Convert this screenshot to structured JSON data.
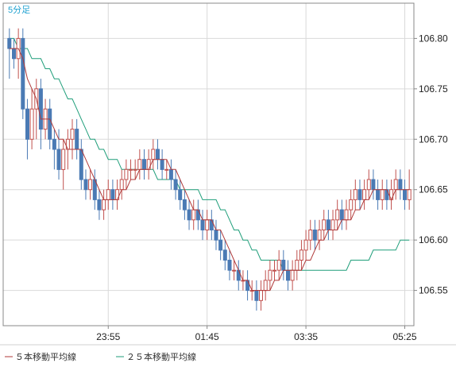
{
  "chart_data": {
    "type": "candlestick",
    "timeframe_label": "5分足",
    "ylim": [
      106.515,
      106.835
    ],
    "y_ticks": [
      "106.80",
      "106.75",
      "106.70",
      "106.65",
      "106.60",
      "106.55"
    ],
    "x_ticks": [
      {
        "label": "23:55",
        "index": 22
      },
      {
        "label": "01:45",
        "index": 44
      },
      {
        "label": "03:35",
        "index": 66
      },
      {
        "label": "05:25",
        "index": 88
      }
    ],
    "grid": true,
    "legend_position": "bottom-left",
    "colors": {
      "up": "#c0504d",
      "down": "#4a7ab4",
      "ma5": "#b03a3a",
      "ma25": "#1f9e7a",
      "grid": "#d9d9d9",
      "axis": "#888888"
    },
    "legend": [
      {
        "label": "５本移動平均線",
        "color": "#b03a3a"
      },
      {
        "label": "２５本移動平均線",
        "color": "#1f9e7a"
      }
    ],
    "candles": [
      [
        106.8,
        106.81,
        106.76,
        106.79
      ],
      [
        106.79,
        106.8,
        106.77,
        106.78
      ],
      [
        106.78,
        106.81,
        106.76,
        106.8
      ],
      [
        106.8,
        106.81,
        106.72,
        106.73
      ],
      [
        106.73,
        106.74,
        106.68,
        106.7
      ],
      [
        106.7,
        106.75,
        106.69,
        106.73
      ],
      [
        106.73,
        106.76,
        106.7,
        106.75
      ],
      [
        106.75,
        106.76,
        106.69,
        106.71
      ],
      [
        106.71,
        106.74,
        106.7,
        106.73
      ],
      [
        106.73,
        106.74,
        106.69,
        106.7
      ],
      [
        106.7,
        106.71,
        106.67,
        106.69
      ],
      [
        106.69,
        106.71,
        106.66,
        106.67
      ],
      [
        106.67,
        106.7,
        106.65,
        106.69
      ],
      [
        106.69,
        106.71,
        106.67,
        106.7
      ],
      [
        106.7,
        106.72,
        106.68,
        106.71
      ],
      [
        106.71,
        106.72,
        106.68,
        106.69
      ],
      [
        106.69,
        106.7,
        106.65,
        106.66
      ],
      [
        106.66,
        106.67,
        106.64,
        106.65
      ],
      [
        106.65,
        106.67,
        106.64,
        106.66
      ],
      [
        106.66,
        106.67,
        106.63,
        106.64
      ],
      [
        106.64,
        106.65,
        106.62,
        106.63
      ],
      [
        106.63,
        106.65,
        106.62,
        106.64
      ],
      [
        106.64,
        106.66,
        106.63,
        106.65
      ],
      [
        106.65,
        106.66,
        106.63,
        106.64
      ],
      [
        106.64,
        106.66,
        106.63,
        106.65
      ],
      [
        106.65,
        106.67,
        106.64,
        106.66
      ],
      [
        106.66,
        106.68,
        106.65,
        106.67
      ],
      [
        106.67,
        106.68,
        106.66,
        106.67
      ],
      [
        106.67,
        106.68,
        106.66,
        106.67
      ],
      [
        106.67,
        106.69,
        106.66,
        106.68
      ],
      [
        106.68,
        106.69,
        106.66,
        106.67
      ],
      [
        106.67,
        106.69,
        106.66,
        106.68
      ],
      [
        106.68,
        106.7,
        106.67,
        106.69
      ],
      [
        106.69,
        106.7,
        106.67,
        106.68
      ],
      [
        106.68,
        106.69,
        106.66,
        106.67
      ],
      [
        106.67,
        106.68,
        106.66,
        106.67
      ],
      [
        106.67,
        106.68,
        106.65,
        106.66
      ],
      [
        106.66,
        106.67,
        106.64,
        106.65
      ],
      [
        106.65,
        106.66,
        106.63,
        106.64
      ],
      [
        106.64,
        106.65,
        106.62,
        106.63
      ],
      [
        106.63,
        106.64,
        106.61,
        106.62
      ],
      [
        106.62,
        106.64,
        106.61,
        106.63
      ],
      [
        106.63,
        106.64,
        106.61,
        106.62
      ],
      [
        106.62,
        106.63,
        106.6,
        106.61
      ],
      [
        106.61,
        106.63,
        106.6,
        106.62
      ],
      [
        106.62,
        106.63,
        106.6,
        106.61
      ],
      [
        106.61,
        106.62,
        106.59,
        106.6
      ],
      [
        106.6,
        106.61,
        106.58,
        106.59
      ],
      [
        106.59,
        106.6,
        106.57,
        106.58
      ],
      [
        106.58,
        106.59,
        106.56,
        106.57
      ],
      [
        106.57,
        106.58,
        106.56,
        106.57
      ],
      [
        106.57,
        106.58,
        106.55,
        106.56
      ],
      [
        106.56,
        106.57,
        106.55,
        106.56
      ],
      [
        106.56,
        106.57,
        106.54,
        106.55
      ],
      [
        106.55,
        106.56,
        106.54,
        106.55
      ],
      [
        106.55,
        106.56,
        106.53,
        106.54
      ],
      [
        106.54,
        106.56,
        106.53,
        106.55
      ],
      [
        106.55,
        106.57,
        106.54,
        106.56
      ],
      [
        106.56,
        106.58,
        106.55,
        106.57
      ],
      [
        106.57,
        106.58,
        106.56,
        106.57
      ],
      [
        106.57,
        106.59,
        106.56,
        106.58
      ],
      [
        106.58,
        106.59,
        106.56,
        106.57
      ],
      [
        106.57,
        106.58,
        106.55,
        106.56
      ],
      [
        106.56,
        106.58,
        106.55,
        106.57
      ],
      [
        106.57,
        106.59,
        106.56,
        106.58
      ],
      [
        106.58,
        106.6,
        106.57,
        106.59
      ],
      [
        106.59,
        106.61,
        106.58,
        106.6
      ],
      [
        106.6,
        106.62,
        106.59,
        106.61
      ],
      [
        106.61,
        106.62,
        106.59,
        106.6
      ],
      [
        106.6,
        106.62,
        106.59,
        106.61
      ],
      [
        106.61,
        106.63,
        106.6,
        106.62
      ],
      [
        106.62,
        106.63,
        106.6,
        106.61
      ],
      [
        106.61,
        106.63,
        106.6,
        106.62
      ],
      [
        106.62,
        106.64,
        106.61,
        106.63
      ],
      [
        106.63,
        106.64,
        106.61,
        106.62
      ],
      [
        106.62,
        106.64,
        106.61,
        106.63
      ],
      [
        106.63,
        106.65,
        106.62,
        106.64
      ],
      [
        106.64,
        106.66,
        106.63,
        106.65
      ],
      [
        106.65,
        106.66,
        106.63,
        106.64
      ],
      [
        106.64,
        106.66,
        106.63,
        106.65
      ],
      [
        106.65,
        106.67,
        106.64,
        106.66
      ],
      [
        106.66,
        106.67,
        106.64,
        106.65
      ],
      [
        106.65,
        106.66,
        106.63,
        106.64
      ],
      [
        106.64,
        106.66,
        106.63,
        106.65
      ],
      [
        106.65,
        106.66,
        106.63,
        106.64
      ],
      [
        106.64,
        106.66,
        106.63,
        106.65
      ],
      [
        106.65,
        106.67,
        106.64,
        106.66
      ],
      [
        106.66,
        106.67,
        106.64,
        106.65
      ],
      [
        106.65,
        106.66,
        106.63,
        106.64
      ],
      [
        106.64,
        106.67,
        106.63,
        106.65
      ]
    ],
    "ma5": [
      106.79,
      106.79,
      106.79,
      106.78,
      106.76,
      106.75,
      106.74,
      106.72,
      106.72,
      106.72,
      106.71,
      106.7,
      106.7,
      106.69,
      106.69,
      106.69,
      106.69,
      106.68,
      106.67,
      106.66,
      106.65,
      106.64,
      106.64,
      106.64,
      106.64,
      106.65,
      106.65,
      106.66,
      106.66,
      106.67,
      106.67,
      106.67,
      106.68,
      106.68,
      106.68,
      106.68,
      106.67,
      106.67,
      106.66,
      106.65,
      106.64,
      106.63,
      106.63,
      106.62,
      106.62,
      106.62,
      106.61,
      106.61,
      106.6,
      106.59,
      106.58,
      106.57,
      106.56,
      106.56,
      106.55,
      106.55,
      106.55,
      106.55,
      106.55,
      106.56,
      106.56,
      106.57,
      106.57,
      106.57,
      106.57,
      106.57,
      106.58,
      106.58,
      106.59,
      106.6,
      106.6,
      106.61,
      106.61,
      106.61,
      106.62,
      106.62,
      106.62,
      106.63,
      106.63,
      106.64,
      106.64,
      106.65,
      106.65,
      106.65,
      106.65,
      106.64,
      106.65,
      106.65,
      106.65,
      106.65
    ],
    "ma25": [
      106.8,
      106.8,
      106.79,
      106.79,
      106.79,
      106.78,
      106.78,
      106.78,
      106.77,
      106.77,
      106.76,
      106.76,
      106.75,
      106.74,
      106.74,
      106.73,
      106.72,
      106.71,
      106.7,
      106.7,
      106.69,
      106.69,
      106.68,
      106.68,
      106.68,
      106.67,
      106.67,
      106.67,
      106.67,
      106.67,
      106.67,
      106.67,
      106.67,
      106.66,
      106.66,
      106.66,
      106.66,
      106.66,
      106.65,
      106.65,
      106.65,
      106.65,
      106.65,
      106.64,
      106.64,
      106.64,
      106.64,
      106.63,
      106.63,
      106.62,
      106.61,
      106.61,
      106.6,
      106.6,
      106.59,
      106.59,
      106.58,
      106.58,
      106.58,
      106.58,
      106.58,
      106.57,
      106.57,
      106.57,
      106.57,
      106.57,
      106.57,
      106.57,
      106.57,
      106.57,
      106.57,
      106.57,
      106.57,
      106.57,
      106.57,
      106.57,
      106.58,
      106.58,
      106.58,
      106.58,
      106.58,
      106.59,
      106.59,
      106.59,
      106.59,
      106.59,
      106.59,
      106.6,
      106.6,
      106.6
    ]
  }
}
